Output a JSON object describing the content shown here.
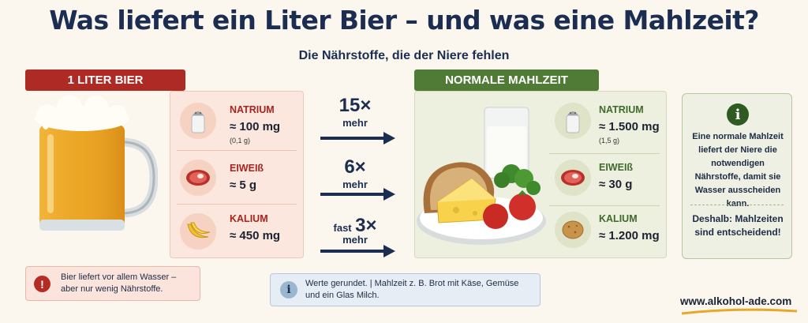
{
  "header": {
    "title": "Was liefert ein Liter Bier – und was eine Mahlzeit?",
    "subtitle": "Die Nährstoffe, die der Niere fehlen"
  },
  "beer": {
    "banner": "1 LITER BIER",
    "nutrients": [
      {
        "name": "NATRIUM",
        "value": "≈ 100 mg",
        "sub": "(0,1 g)",
        "icon": "salt-shaker-icon"
      },
      {
        "name": "EIWEIß",
        "value": "≈ 5 g",
        "sub": "",
        "icon": "steak-icon"
      },
      {
        "name": "KALIUM",
        "value": "≈ 450 mg",
        "sub": "",
        "icon": "banana-icon"
      }
    ]
  },
  "comparisons": [
    {
      "prefix": "",
      "number": "15×",
      "label": "mehr"
    },
    {
      "prefix": "",
      "number": "6×",
      "label": "mehr"
    },
    {
      "prefix": "fast",
      "number": "3×",
      "label": "mehr"
    }
  ],
  "meal": {
    "banner": "NORMALE MAHLZEIT",
    "nutrients": [
      {
        "name": "NATRIUM",
        "value": "≈ 1.500 mg",
        "sub": "(1,5 g)",
        "icon": "salt-shaker-icon"
      },
      {
        "name": "EIWEIß",
        "value": "≈ 30 g",
        "sub": "",
        "icon": "steak-icon"
      },
      {
        "name": "KALIUM",
        "value": "≈ 1.200 mg",
        "sub": "",
        "icon": "potato-icon"
      }
    ]
  },
  "info_box": {
    "text1": "Eine normale Mahlzeit liefert der Niere die notwendigen Nährstoffe, damit sie Wasser ausscheiden kann.",
    "text2": "Deshalb: Mahlzeiten sind entscheidend!"
  },
  "note_red": "Bier liefert vor allem Wasser – aber nur wenig Nährstoffe.",
  "note_blue": "Werte gerundet. | Mahlzeit z. B. Brot mit Käse, Gemüse und ein Glas Milch.",
  "website": "www.alkohol-ade.com",
  "colors": {
    "beer_accent": "#ad2a25",
    "meal_accent": "#4f7b37",
    "navy": "#1b2e52"
  }
}
